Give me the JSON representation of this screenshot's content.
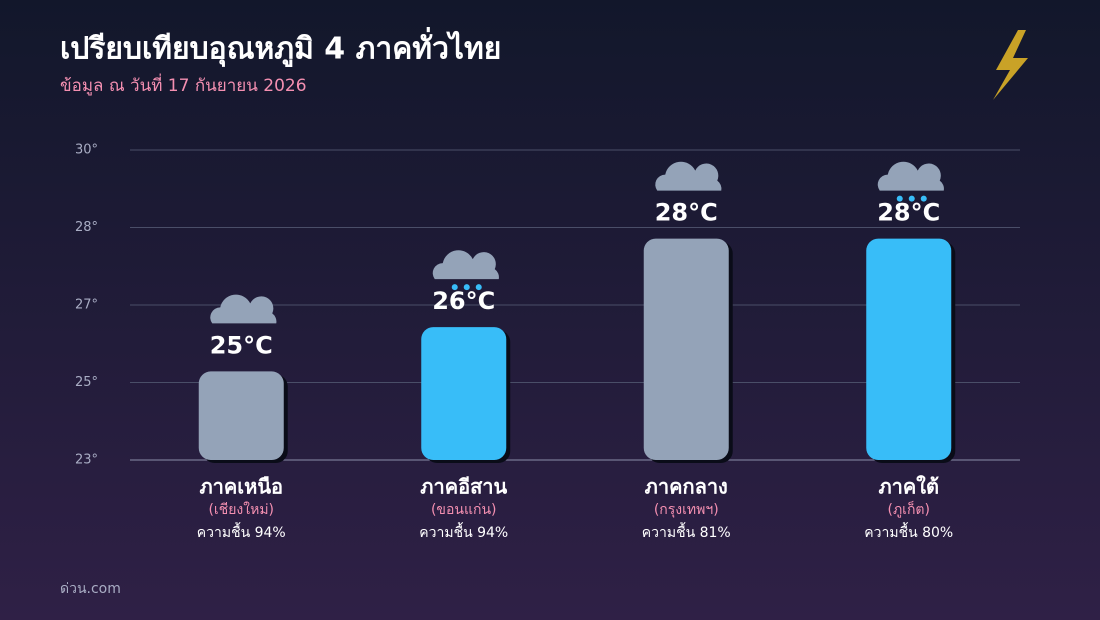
{
  "chart_data": {
    "type": "bar",
    "title": "เปรียบเทียบอุณหภูมิ 4 ภาคทั่วไทย",
    "subtitle": "ข้อมูล ณ วันที่ 17 กันยายน 2026",
    "source": "ด่วน.com",
    "categories": [
      "ภาคเหนือ",
      "ภาคอีสาน",
      "ภาคกลาง",
      "ภาคใต้"
    ],
    "category_subtitles": [
      "(เชียงใหม่)",
      "(ขอนแก่น)",
      "(กรุงเทพฯ)",
      "(ภูเก็ต)"
    ],
    "humidity_labels": [
      "ความชื้น 94%",
      "ความชื้น 94%",
      "ความชื้น 81%",
      "ความชื้น 80%"
    ],
    "values": [
      25,
      26,
      28,
      28
    ],
    "value_labels": [
      "25°C",
      "26°C",
      "28°C",
      "28°C"
    ],
    "colors": [
      "#94a3b8",
      "#38bdf8",
      "#94a3b8",
      "#38bdf8"
    ],
    "ylim": [
      23,
      30
    ],
    "yticks": [
      {
        "value": 23,
        "label": "23°"
      },
      {
        "value": 24.75,
        "label": "25°"
      },
      {
        "value": 26.5,
        "label": "27°"
      },
      {
        "value": 28.25,
        "label": "28°"
      },
      {
        "value": 30,
        "label": "30°"
      }
    ],
    "grid": true
  }
}
